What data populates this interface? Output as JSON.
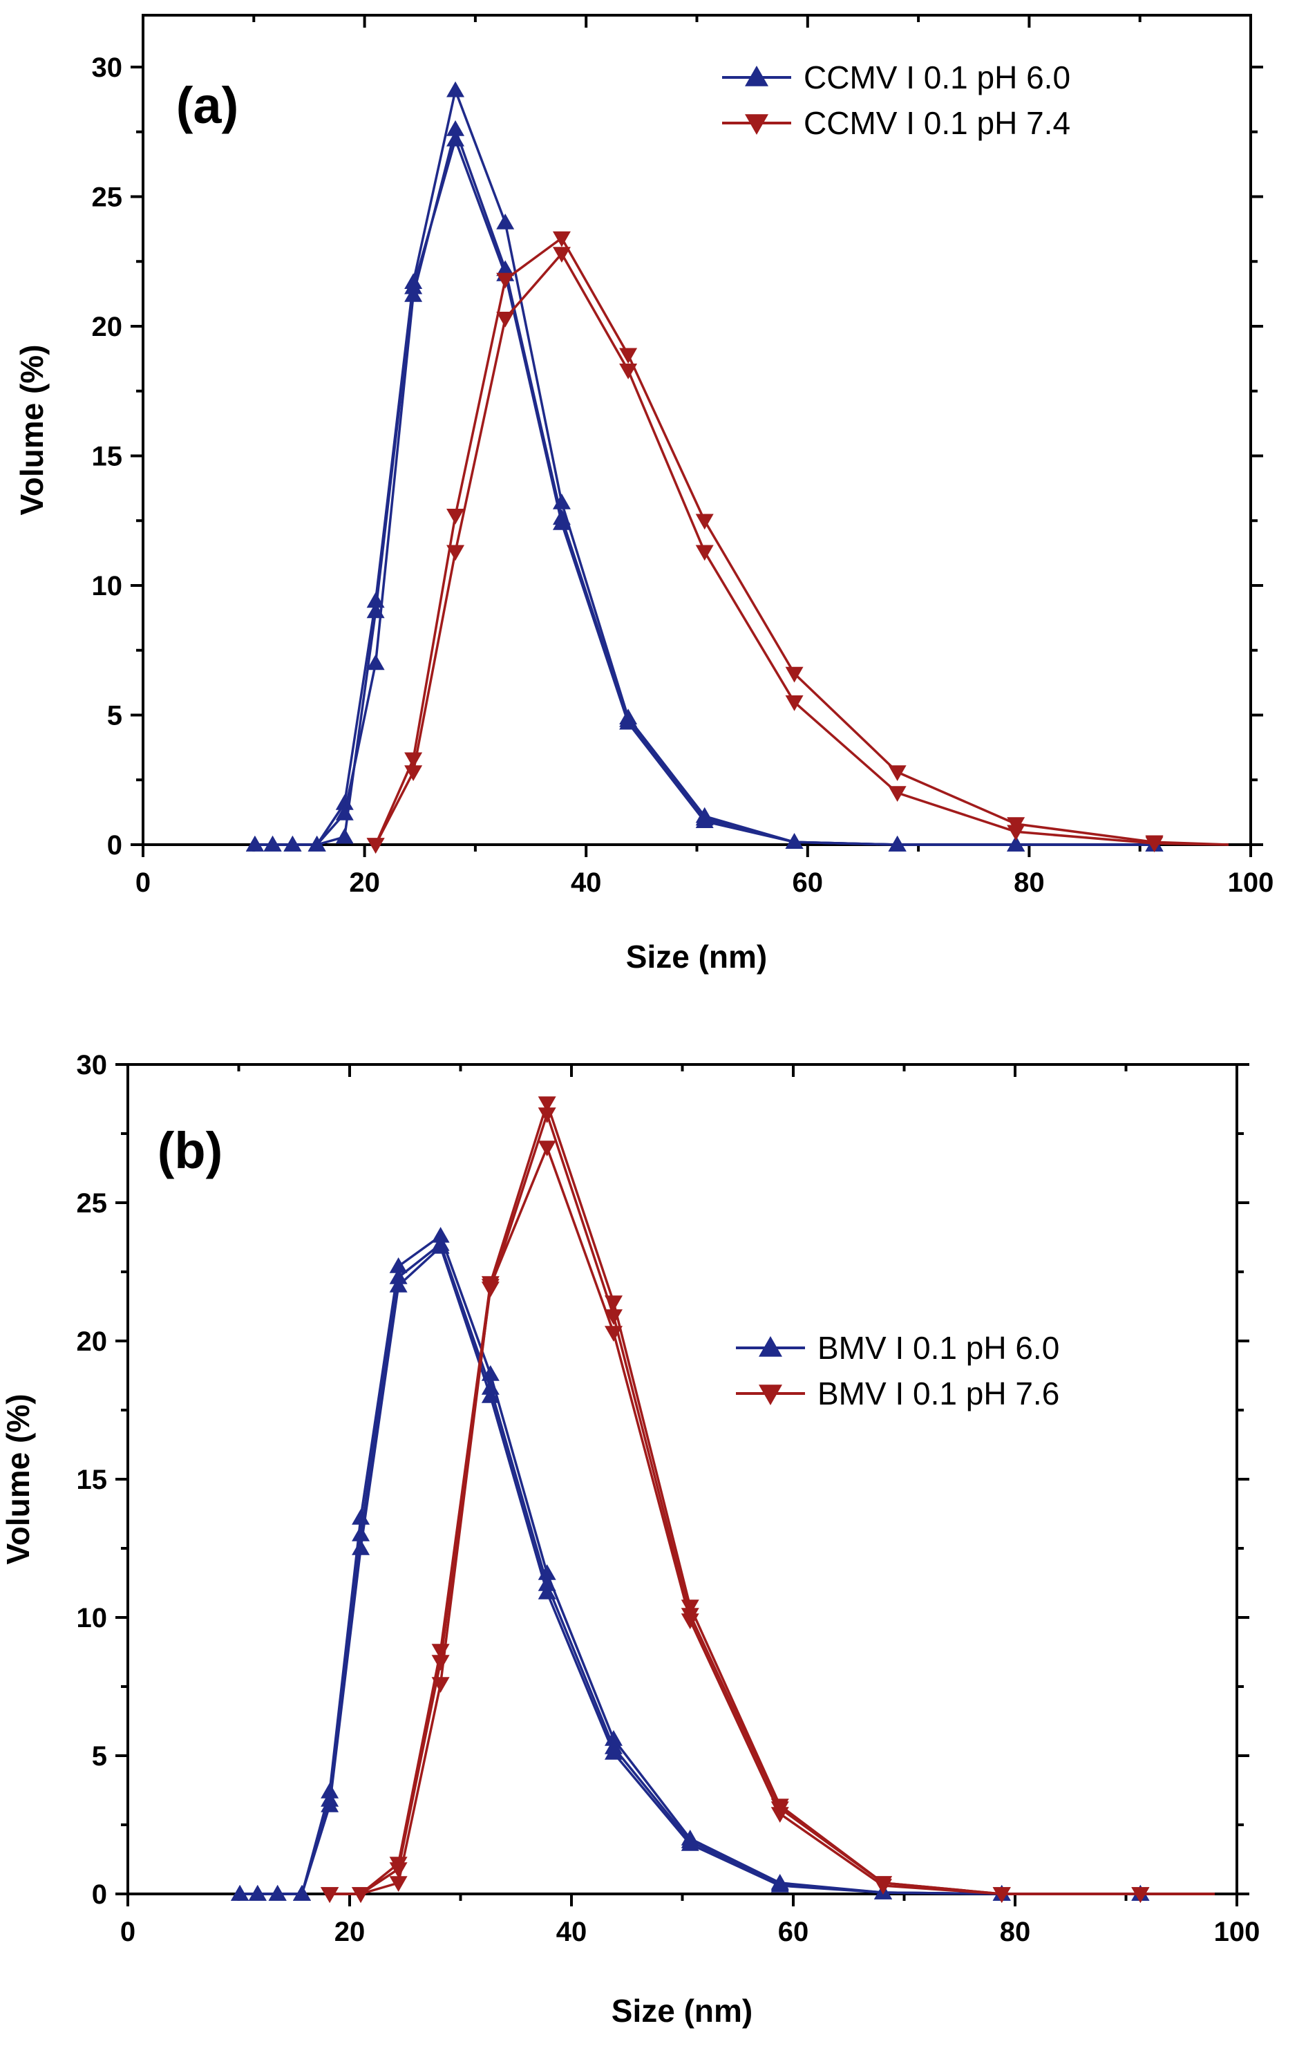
{
  "chart_data": [
    {
      "type": "line",
      "panel_label": "(a)",
      "xlabel": "Size (nm)",
      "ylabel": "Volume (%)",
      "xlim": [
        0,
        100
      ],
      "ylim": [
        0,
        32
      ],
      "xticks": [
        0,
        20,
        40,
        60,
        80,
        100
      ],
      "yticks": [
        0,
        5,
        10,
        15,
        20,
        25,
        30
      ],
      "legend_position": "top-right",
      "grid": false,
      "series": [
        {
          "name": "CCMV I 0.1 pH 6.0",
          "color": "#1f2a8a",
          "marker": "triangle-up",
          "x": [
            10.1,
            11.7,
            13.5,
            15.7,
            18.2,
            21.0,
            24.4,
            28.2,
            32.7,
            37.8,
            43.8,
            50.7,
            58.8,
            68.1,
            78.8,
            91.3
          ],
          "runs": [
            [
              0,
              0,
              0,
              0,
              1.6,
              9.4,
              21.7,
              29.1,
              24.0,
              13.2,
              4.9,
              1.1,
              0.1,
              0,
              0,
              0
            ],
            [
              0,
              0,
              0,
              0,
              1.2,
              7.0,
              21.2,
              27.6,
              22.2,
              12.6,
              4.8,
              1.0,
              0.1,
              0,
              0,
              0
            ],
            [
              0,
              0,
              0,
              0,
              0.3,
              9.0,
              21.5,
              27.2,
              22.0,
              12.4,
              4.7,
              0.9,
              0.1,
              0,
              0,
              0
            ]
          ]
        },
        {
          "name": "CCMV I 0.1 pH 7.4",
          "color": "#a11b1b",
          "marker": "triangle-down",
          "x": [
            21.0,
            24.4,
            28.2,
            32.7,
            37.8,
            43.8,
            50.7,
            58.8,
            68.1,
            78.8,
            91.3,
            98.0
          ],
          "runs": [
            [
              0,
              3.3,
              12.7,
              21.8,
              23.4,
              18.9,
              12.5,
              6.6,
              2.8,
              0.8,
              0.1,
              0
            ],
            [
              0,
              2.8,
              11.3,
              20.3,
              22.8,
              18.3,
              11.3,
              5.5,
              2.0,
              0.5,
              0.05,
              0
            ]
          ]
        }
      ]
    },
    {
      "type": "line",
      "panel_label": "(b)",
      "xlabel": "Size (nm)",
      "ylabel": "Volume (%)",
      "xlim": [
        0,
        100
      ],
      "ylim": [
        0,
        30
      ],
      "xticks": [
        0,
        20,
        40,
        60,
        80,
        100
      ],
      "yticks": [
        0,
        5,
        10,
        15,
        20,
        25,
        30
      ],
      "legend_position": "center-right",
      "grid": false,
      "series": [
        {
          "name": "BMV I 0.1 pH 6.0",
          "color": "#1f2a8a",
          "marker": "triangle-up",
          "x": [
            10.1,
            11.7,
            13.5,
            15.7,
            18.2,
            21.0,
            24.4,
            28.2,
            32.7,
            37.8,
            43.8,
            50.7,
            58.8,
            68.1,
            78.8,
            91.3
          ],
          "runs": [
            [
              0,
              0,
              0,
              0,
              3.7,
              13.6,
              22.7,
              23.8,
              18.8,
              11.6,
              5.6,
              2.0,
              0.4,
              0.05,
              0,
              0
            ],
            [
              0,
              0,
              0,
              0,
              3.2,
              12.5,
              22.0,
              23.4,
              18.0,
              10.9,
              5.1,
              1.8,
              0.3,
              0.05,
              0,
              0
            ],
            [
              0,
              0,
              0,
              0,
              3.4,
              13.0,
              22.3,
              23.5,
              18.3,
              11.2,
              5.3,
              1.9,
              0.35,
              0.05,
              0,
              0
            ]
          ]
        },
        {
          "name": "BMV I 0.1 pH 7.6",
          "color": "#a11b1b",
          "marker": "triangle-down",
          "x": [
            18.2,
            21.0,
            24.4,
            28.2,
            32.7,
            37.8,
            43.8,
            50.7,
            58.8,
            68.1,
            78.8,
            91.3,
            98.0
          ],
          "runs": [
            [
              0,
              0,
              1.1,
              8.8,
              22.1,
              28.6,
              21.4,
              10.4,
              3.2,
              0.4,
              0,
              0,
              0
            ],
            [
              0,
              0,
              0.4,
              7.6,
              22.0,
              27.0,
              20.3,
              9.9,
              2.9,
              0.3,
              0,
              0,
              0
            ],
            [
              0,
              0,
              0.9,
              8.4,
              21.9,
              28.2,
              20.9,
              10.1,
              3.1,
              0.4,
              0,
              0,
              0
            ]
          ]
        }
      ]
    }
  ]
}
